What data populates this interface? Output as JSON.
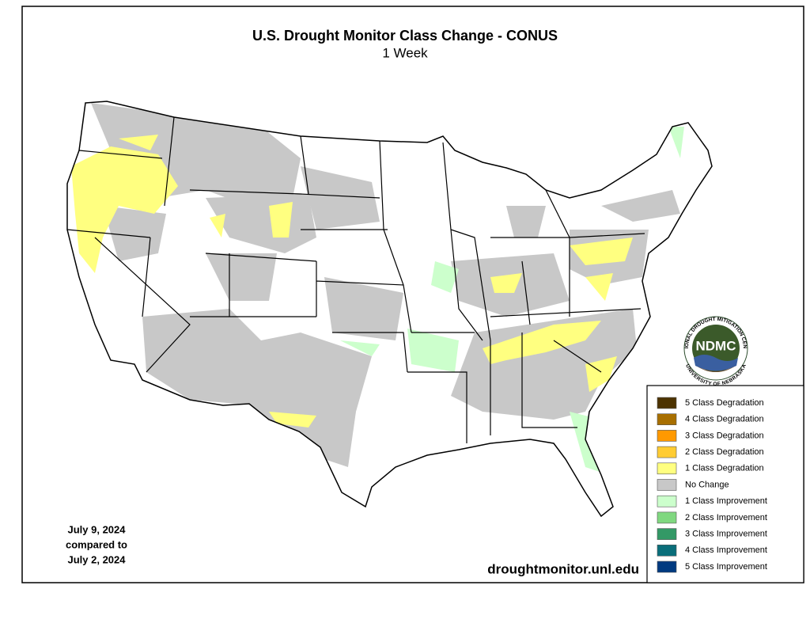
{
  "header": {
    "title": "U.S. Drought Monitor Class Change - CONUS",
    "subtitle": "1 Week"
  },
  "legend": {
    "items": [
      {
        "label": "5 Class Degradation",
        "color": "#4d3300"
      },
      {
        "label": "4 Class Degradation",
        "color": "#a86f00"
      },
      {
        "label": "3 Class Degradation",
        "color": "#ff9900"
      },
      {
        "label": "2 Class Degradation",
        "color": "#ffcc33"
      },
      {
        "label": "1 Class Degradation",
        "color": "#ffff80"
      },
      {
        "label": "No Change",
        "color": "#c8c8c8"
      },
      {
        "label": "1 Class Improvement",
        "color": "#ccffcc"
      },
      {
        "label": "2 Class Improvement",
        "color": "#80d880"
      },
      {
        "label": "3 Class Improvement",
        "color": "#339966"
      },
      {
        "label": "4 Class Improvement",
        "color": "#0a6e7a"
      },
      {
        "label": "5 Class Improvement",
        "color": "#003a80"
      }
    ]
  },
  "date_note": {
    "lines": [
      "July 9, 2024",
      "compared to",
      "July 2, 2024"
    ]
  },
  "source": "droughtmonitor.unl.edu",
  "logo": {
    "text": "NDMC",
    "ring_top": "NATIONAL DROUGHT MITIGATION CENTER",
    "ring_bottom": "UNIVERSITY OF NEBRASKA"
  }
}
